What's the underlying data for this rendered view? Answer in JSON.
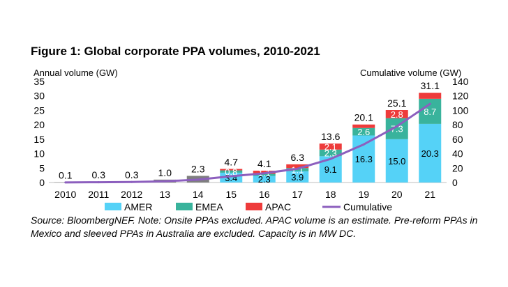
{
  "colors": {
    "AMER": "#55d2f7",
    "EMEA": "#39b39c",
    "APAC": "#ee3b3b",
    "Cumulative": "#8c5fbe",
    "early_bar": "#7f7f7f"
  },
  "chart_data": {
    "type": "bar",
    "title": "Figure 1: Global corporate PPA volumes, 2010-2021",
    "ylabel": "Annual volume  (GW)",
    "y2label": "Cumulative  volume  (GW)",
    "ylim": [
      0,
      35
    ],
    "yticks": [
      "0",
      "5",
      "10",
      "15",
      "20",
      "25",
      "30",
      "35"
    ],
    "y2lim": [
      0,
      140
    ],
    "y2ticks": [
      "0",
      "20",
      "40",
      "60",
      "80",
      "100",
      "120",
      "140"
    ],
    "categories": [
      "2010",
      "2011",
      "2012",
      "13",
      "14",
      "15",
      "16",
      "17",
      "18",
      "19",
      "20",
      "21"
    ],
    "totals": [
      0.1,
      0.3,
      0.3,
      1.0,
      2.3,
      4.7,
      4.1,
      6.3,
      13.6,
      20.1,
      25.1,
      31.1
    ],
    "total_labels": [
      "0.1",
      "0.3",
      "0.3",
      "1.0",
      "2.3",
      "4.7",
      "4.1",
      "6.3",
      "13.6",
      "20.1",
      "25.1",
      "31.1"
    ],
    "series": [
      {
        "name": "AMER",
        "values": [
          null,
          null,
          null,
          null,
          null,
          3.4,
          2.3,
          3.9,
          9.1,
          16.3,
          15.0,
          20.3
        ],
        "labels": [
          "",
          "",
          "",
          "",
          "",
          "3.4",
          "2.3",
          "3.9",
          "9.1",
          "16.3",
          "15.0",
          "20.3"
        ]
      },
      {
        "name": "EMEA",
        "values": [
          null,
          null,
          null,
          null,
          null,
          0.8,
          0.7,
          1.1,
          2.3,
          2.6,
          7.3,
          8.7
        ],
        "labels": [
          "",
          "",
          "",
          "",
          "",
          "0.8",
          "",
          "1.1",
          "2.3",
          "2.6",
          "7.3",
          "8.7"
        ]
      },
      {
        "name": "APAC",
        "values": [
          null,
          null,
          null,
          null,
          null,
          0.5,
          1.1,
          1.3,
          2.1,
          1.2,
          2.8,
          2.1
        ],
        "labels": [
          "",
          "",
          "",
          "",
          "",
          "",
          "1.1",
          "",
          "2.1",
          "",
          "2.8",
          ""
        ]
      }
    ],
    "cumulative": {
      "name": "Cumulative",
      "values": [
        0.1,
        0.4,
        0.7,
        1.7,
        4.0,
        8.7,
        12.8,
        19.1,
        32.7,
        52.8,
        77.9,
        109.0
      ]
    },
    "legend": [
      "AMER",
      "EMEA",
      "APAC",
      "Cumulative"
    ]
  },
  "source_note": "Source: BloombergNEF. Note: Onsite PPAs excluded. APAC volume is an estimate. Pre-reform PPAs in Mexico and sleeved PPAs in Australia are excluded. Capacity is in MW DC."
}
